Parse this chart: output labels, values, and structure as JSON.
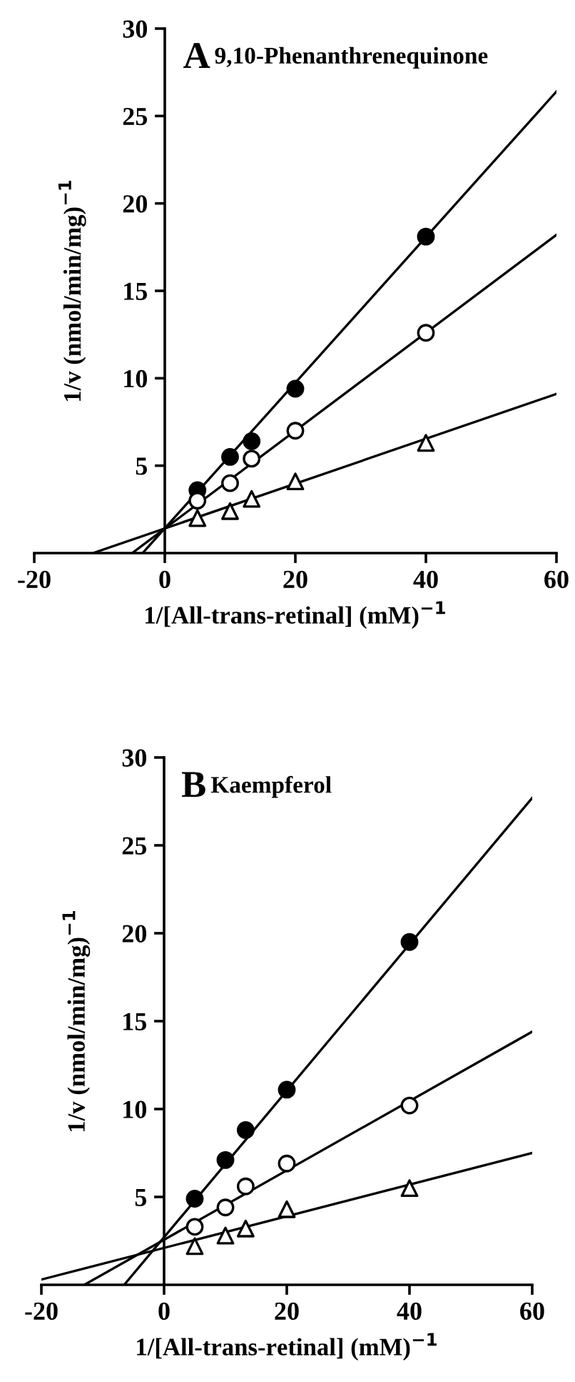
{
  "chart_data": [
    {
      "type": "scatter",
      "title": "A",
      "subtitle": "9,10-Phenanthrenequinone",
      "xlabel": "1/[All-trans-retinal] (mM)$^{−1}$",
      "ylabel": "1/v (nmol/min/mg)$^{−1}$",
      "xlim": [
        -20,
        60
      ],
      "xticks": [
        -20,
        0,
        20,
        40,
        60
      ],
      "ylim": [
        0,
        30
      ],
      "yticks": [
        5,
        10,
        15,
        20,
        25,
        30
      ],
      "grid": false,
      "legend": false,
      "series": [
        {
          "type": "line",
          "color": "#000000",
          "marker": "none",
          "x": [
            -3.4,
            60
          ],
          "values": [
            0,
            26.4
          ]
        },
        {
          "type": "line",
          "color": "#000000",
          "marker": "none",
          "x": [
            -5,
            60
          ],
          "values": [
            0,
            18.2
          ]
        },
        {
          "type": "line",
          "color": "#000000",
          "marker": "none",
          "x": [
            -11,
            60
          ],
          "values": [
            0,
            9.1
          ]
        },
        {
          "color": "#000000",
          "marker": "circle",
          "x": [
            5,
            10,
            13.3,
            20,
            40
          ],
          "values": [
            3.6,
            5.5,
            6.4,
            9.4,
            18.1
          ]
        },
        {
          "color": "#ffffff",
          "marker": "circle",
          "x": [
            5,
            10,
            13.3,
            20,
            40
          ],
          "values": [
            3.0,
            4.0,
            5.4,
            7.0,
            12.6
          ]
        },
        {
          "color": "#ffffff",
          "marker": "triangle",
          "x": [
            5,
            10,
            13.3,
            20,
            40
          ],
          "values": [
            2.0,
            2.4,
            3.1,
            4.1,
            6.3
          ]
        }
      ]
    },
    {
      "type": "scatter",
      "title": "B",
      "subtitle": "Kaempferol",
      "xlabel": "1/[All-trans-retinal] (mM)$^{−1}$",
      "ylabel": "1/v (nmol/min/mg)$^{−1}$",
      "xlim": [
        -20,
        60
      ],
      "xticks": [
        -20,
        0,
        20,
        40,
        60
      ],
      "ylim": [
        0,
        30
      ],
      "yticks": [
        5,
        10,
        15,
        20,
        25,
        30
      ],
      "grid": false,
      "legend": false,
      "series": [
        {
          "type": "line",
          "color": "#000000",
          "marker": "none",
          "x": [
            -6.5,
            60
          ],
          "values": [
            0,
            27.7
          ]
        },
        {
          "type": "line",
          "color": "#000000",
          "marker": "none",
          "x": [
            -13,
            60
          ],
          "values": [
            0,
            14.4
          ]
        },
        {
          "type": "line",
          "color": "#000000",
          "marker": "none",
          "x": [
            -20,
            60
          ],
          "values": [
            0.3,
            7.5
          ]
        },
        {
          "color": "#000000",
          "marker": "circle",
          "x": [
            5,
            10,
            13.3,
            20,
            40
          ],
          "values": [
            4.9,
            7.1,
            8.8,
            11.1,
            19.5
          ]
        },
        {
          "color": "#ffffff",
          "marker": "circle",
          "x": [
            5,
            10,
            13.3,
            20,
            40
          ],
          "values": [
            3.3,
            4.4,
            5.6,
            6.9,
            10.2
          ]
        },
        {
          "color": "#ffffff",
          "marker": "triangle",
          "x": [
            5,
            10,
            13.3,
            20,
            40
          ],
          "values": [
            2.2,
            2.8,
            3.2,
            4.3,
            5.5
          ]
        }
      ]
    }
  ]
}
